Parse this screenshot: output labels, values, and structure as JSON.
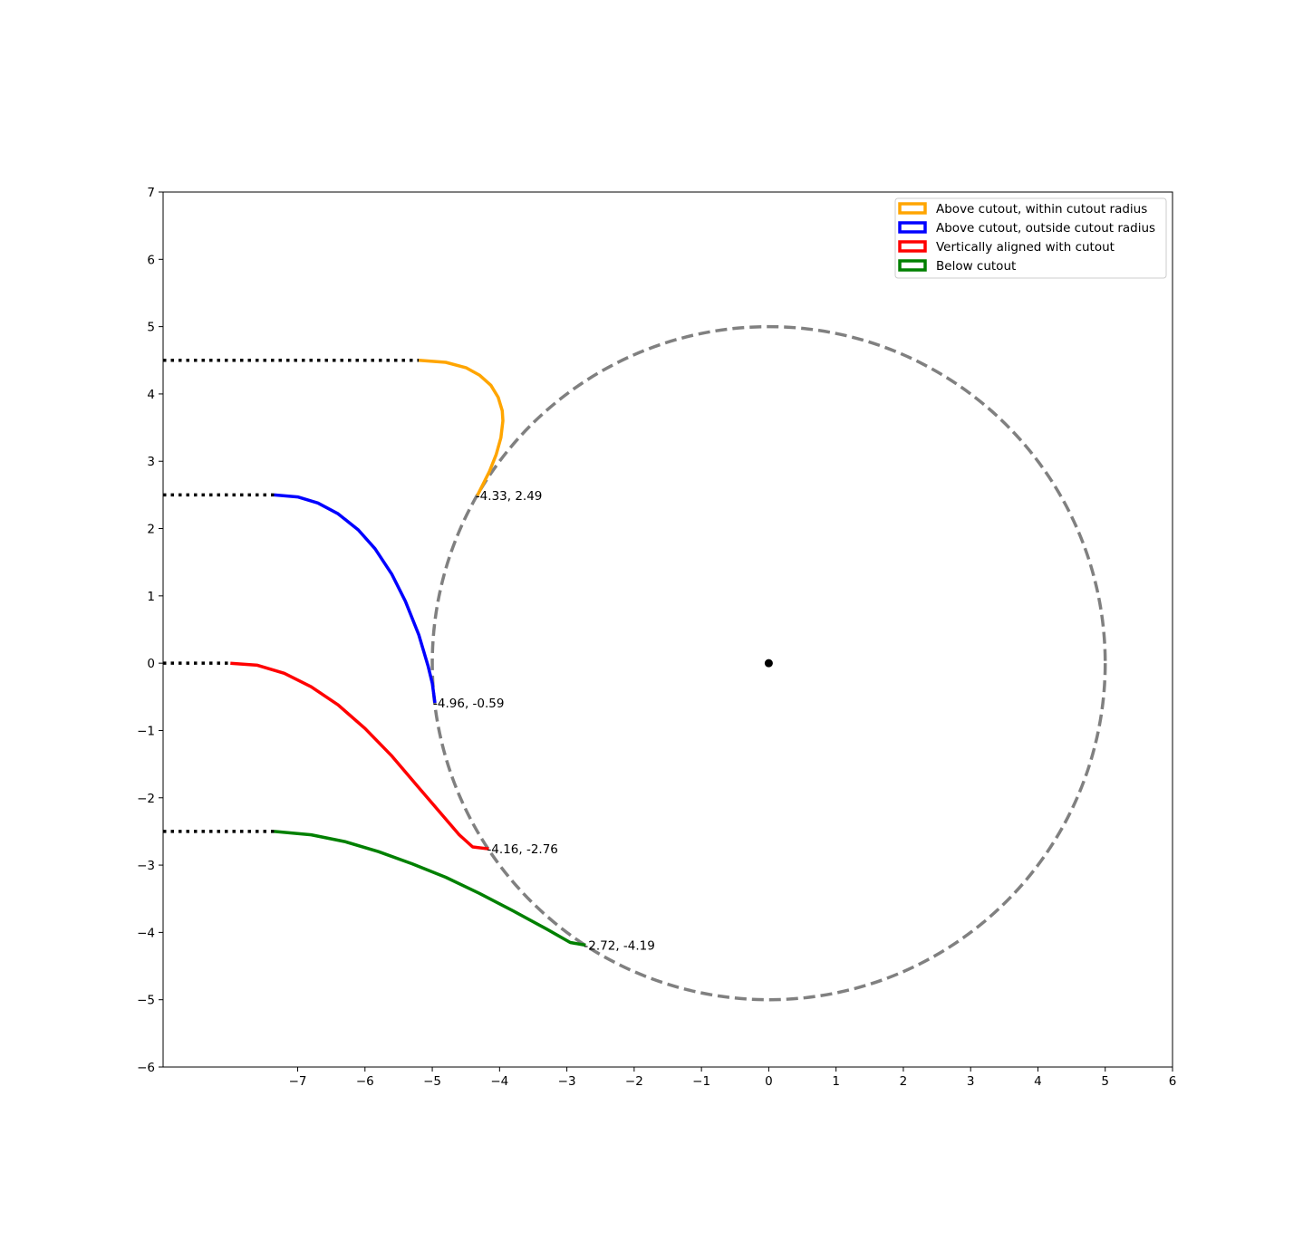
{
  "chart_data": {
    "type": "line",
    "xlim": [
      -9,
      6
    ],
    "ylim": [
      -6,
      7
    ],
    "xticks": [
      -7,
      -6,
      -5,
      -4,
      -3,
      -2,
      -1,
      0,
      1,
      2,
      3,
      4,
      5,
      6
    ],
    "yticks": [
      -6,
      -5,
      -4,
      -3,
      -2,
      -1,
      0,
      1,
      2,
      3,
      4,
      5,
      6,
      7
    ],
    "xtick_labels": [
      "−7",
      "−6",
      "−5",
      "−4",
      "−3",
      "−2",
      "−1",
      "0",
      "1",
      "2",
      "3",
      "4",
      "5",
      "6"
    ],
    "ytick_labels": [
      "−6",
      "−5",
      "−4",
      "−3",
      "−2",
      "−1",
      "0",
      "1",
      "2",
      "3",
      "4",
      "5",
      "6",
      "7"
    ],
    "grid": false,
    "legend_position": "top-right",
    "cutout": {
      "center": [
        0,
        0
      ],
      "radius": 5,
      "color": "#808080",
      "style": "dashed"
    },
    "center_point": {
      "x": 0,
      "y": 0,
      "color": "#000000"
    },
    "series": [
      {
        "name": "Above cutout, within cutout radius",
        "color": "#FFA500",
        "lead_in": {
          "x": [
            -9,
            -5.2
          ],
          "y": [
            4.5,
            4.5
          ]
        },
        "points": [
          [
            -5.2,
            4.5
          ],
          [
            -4.8,
            4.47
          ],
          [
            -4.5,
            4.39
          ],
          [
            -4.3,
            4.28
          ],
          [
            -4.13,
            4.13
          ],
          [
            -4.02,
            3.95
          ],
          [
            -3.96,
            3.75
          ],
          [
            -3.95,
            3.6
          ],
          [
            -3.98,
            3.35
          ],
          [
            -4.05,
            3.1
          ],
          [
            -4.15,
            2.85
          ],
          [
            -4.25,
            2.65
          ],
          [
            -4.33,
            2.49
          ]
        ],
        "end_label": "-4.33, 2.49"
      },
      {
        "name": "Above cutout, outside cutout radius",
        "color": "#0000FF",
        "lead_in": {
          "x": [
            -9,
            -7.35
          ],
          "y": [
            2.5,
            2.5
          ]
        },
        "points": [
          [
            -7.35,
            2.5
          ],
          [
            -7.0,
            2.47
          ],
          [
            -6.7,
            2.38
          ],
          [
            -6.4,
            2.22
          ],
          [
            -6.1,
            1.98
          ],
          [
            -5.85,
            1.7
          ],
          [
            -5.6,
            1.32
          ],
          [
            -5.4,
            0.92
          ],
          [
            -5.2,
            0.42
          ],
          [
            -5.06,
            -0.05
          ],
          [
            -5.0,
            -0.3
          ],
          [
            -4.96,
            -0.59
          ]
        ],
        "end_label": "-4.96, -0.59"
      },
      {
        "name": "Vertically aligned with cutout",
        "color": "#FF0000",
        "lead_in": {
          "x": [
            -9,
            -8.0
          ],
          "y": [
            0,
            0
          ]
        },
        "points": [
          [
            -8.0,
            0
          ],
          [
            -7.6,
            -0.03
          ],
          [
            -7.2,
            -0.15
          ],
          [
            -6.8,
            -0.35
          ],
          [
            -6.4,
            -0.62
          ],
          [
            -6.0,
            -0.97
          ],
          [
            -5.6,
            -1.38
          ],
          [
            -5.2,
            -1.85
          ],
          [
            -4.9,
            -2.2
          ],
          [
            -4.6,
            -2.55
          ],
          [
            -4.4,
            -2.73
          ],
          [
            -4.16,
            -2.76
          ]
        ],
        "end_label": "-4.16, -2.76"
      },
      {
        "name": "Below cutout",
        "color": "#008000",
        "lead_in": {
          "x": [
            -9,
            -7.35
          ],
          "y": [
            -2.5,
            -2.5
          ]
        },
        "points": [
          [
            -7.35,
            -2.5
          ],
          [
            -6.8,
            -2.55
          ],
          [
            -6.3,
            -2.65
          ],
          [
            -5.8,
            -2.8
          ],
          [
            -5.3,
            -2.98
          ],
          [
            -4.8,
            -3.18
          ],
          [
            -4.3,
            -3.42
          ],
          [
            -3.8,
            -3.68
          ],
          [
            -3.3,
            -3.95
          ],
          [
            -2.95,
            -4.15
          ],
          [
            -2.72,
            -4.19
          ]
        ],
        "end_label": "-2.72, -4.19"
      }
    ]
  }
}
